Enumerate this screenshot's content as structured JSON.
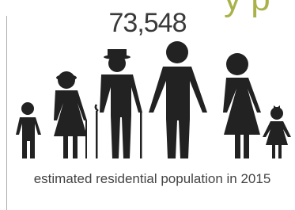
{
  "header_fragment": "y p",
  "figure": "73,548",
  "caption": "estimated residential population in 2015"
}
